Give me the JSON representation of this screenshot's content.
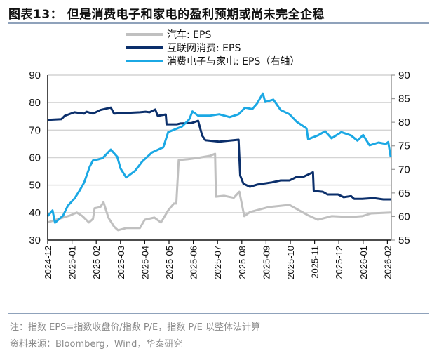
{
  "title": "图表13：  但是消费电子和家电的盈利预期或尚未完全企稳",
  "notes": {
    "note": "注：指数 EPS=指数收盘价/指数 P/E，指数 P/E 以整体法计算",
    "source": "资料来源：Bloomberg，Wind，华泰研究"
  },
  "chart_data": {
    "type": "line",
    "title": "",
    "xlabel": "",
    "ylabel": "",
    "legend_position": "top-center",
    "grid": true,
    "x_ticks": [
      "2024-12",
      "2025-01",
      "2025-02",
      "2025-03",
      "2025-04",
      "2025-05",
      "2025-06",
      "2025-07",
      "2025-08",
      "2025-09",
      "2025-10",
      "2025-11",
      "2025-12",
      "2026-01",
      "2026-02"
    ],
    "ylim_left": [
      30,
      90
    ],
    "yticks_left": [
      30,
      40,
      50,
      60,
      70,
      80,
      90
    ],
    "ylim_right": [
      55,
      90
    ],
    "yticks_right": [
      55,
      60,
      65,
      70,
      75,
      80,
      85,
      90
    ],
    "series": [
      {
        "name": "汽车: EPS",
        "axis": "left",
        "color": "#c0c0c0",
        "points": [
          [
            "2024-12-01",
            36.4
          ],
          [
            "2024-12-11",
            37.4
          ],
          [
            "2024-12-29",
            39
          ],
          [
            "2025-01-07",
            40
          ],
          [
            "2025-01-14",
            38.7
          ],
          [
            "2025-01-22",
            36.4
          ],
          [
            "2025-01-27",
            37.7
          ],
          [
            "2025-01-29",
            41.6
          ],
          [
            "2025-02-06",
            42
          ],
          [
            "2025-02-10",
            43.8
          ],
          [
            "2025-02-16",
            38.2
          ],
          [
            "2025-02-23",
            34.9
          ],
          [
            "2025-02-28",
            33.6
          ],
          [
            "2025-03-08",
            34.4
          ],
          [
            "2025-03-25",
            34.4
          ],
          [
            "2025-04-01",
            37.4
          ],
          [
            "2025-04-13",
            38.2
          ],
          [
            "2025-04-21",
            36.4
          ],
          [
            "2025-04-30",
            40.8
          ],
          [
            "2025-05-07",
            43.3
          ],
          [
            "2025-05-10",
            43.3
          ],
          [
            "2025-05-13",
            59.1
          ],
          [
            "2025-05-24",
            59.4
          ],
          [
            "2025-06-07",
            59.9
          ],
          [
            "2025-06-22",
            60.7
          ],
          [
            "2025-06-28",
            61.4
          ],
          [
            "2025-06-29",
            45.8
          ],
          [
            "2025-07-09",
            46.1
          ],
          [
            "2025-07-21",
            45.4
          ],
          [
            "2025-07-28",
            47.6
          ],
          [
            "2025-08-04",
            38.7
          ],
          [
            "2025-08-11",
            40.2
          ],
          [
            "2025-09-04",
            42
          ],
          [
            "2025-09-30",
            42.8
          ],
          [
            "2025-10-12",
            40.8
          ],
          [
            "2025-10-23",
            39
          ],
          [
            "2025-11-05",
            37.4
          ],
          [
            "2025-11-22",
            38.7
          ],
          [
            "2025-12-16",
            38.4
          ],
          [
            "2025-12-30",
            38.7
          ],
          [
            "2026-01-11",
            39.7
          ],
          [
            "2026-02-05",
            40
          ]
        ]
      },
      {
        "name": "互联网消费: EPS",
        "axis": "left",
        "color": "#0b2f6b",
        "points": [
          [
            "2024-12-01",
            73.7
          ],
          [
            "2024-12-18",
            74
          ],
          [
            "2024-12-22",
            75.2
          ],
          [
            "2025-01-04",
            76.5
          ],
          [
            "2025-01-16",
            76
          ],
          [
            "2025-01-19",
            76.7
          ],
          [
            "2025-01-27",
            76
          ],
          [
            "2025-02-06",
            77.3
          ],
          [
            "2025-02-19",
            78.2
          ],
          [
            "2025-02-23",
            76
          ],
          [
            "2025-03-05",
            76.2
          ],
          [
            "2025-03-25",
            76.5
          ],
          [
            "2025-04-02",
            76.7
          ],
          [
            "2025-04-07",
            76.5
          ],
          [
            "2025-04-14",
            77.5
          ],
          [
            "2025-04-17",
            75.2
          ],
          [
            "2025-04-27",
            75.7
          ],
          [
            "2025-04-28",
            72.1
          ],
          [
            "2025-05-11",
            72.1
          ],
          [
            "2025-05-15",
            72.4
          ],
          [
            "2025-05-29",
            72.6
          ],
          [
            "2025-06-07",
            73.4
          ],
          [
            "2025-06-12",
            68
          ],
          [
            "2025-06-16",
            66.3
          ],
          [
            "2025-07-03",
            65.8
          ],
          [
            "2025-07-27",
            66.5
          ],
          [
            "2025-07-29",
            53.5
          ],
          [
            "2025-08-03",
            50.5
          ],
          [
            "2025-08-11",
            49.4
          ],
          [
            "2025-08-20",
            50.2
          ],
          [
            "2025-09-08",
            51
          ],
          [
            "2025-09-19",
            51.7
          ],
          [
            "2025-09-30",
            51.7
          ],
          [
            "2025-10-09",
            53
          ],
          [
            "2025-10-17",
            53
          ],
          [
            "2025-10-29",
            54.7
          ],
          [
            "2025-10-30",
            47.9
          ],
          [
            "2025-11-11",
            47.6
          ],
          [
            "2025-11-17",
            46.6
          ],
          [
            "2025-11-30",
            46.6
          ],
          [
            "2025-12-07",
            45.6
          ],
          [
            "2025-12-16",
            46
          ],
          [
            "2025-12-20",
            45
          ],
          [
            "2025-12-30",
            45
          ],
          [
            "2026-01-14",
            45.3
          ],
          [
            "2026-01-26",
            44.8
          ],
          [
            "2026-02-05",
            44.8
          ]
        ]
      },
      {
        "name": "消费电子与家电: EPS（右轴）",
        "axis": "right",
        "color": "#1ba8e4",
        "points": [
          [
            "2024-12-01",
            60.1
          ],
          [
            "2024-12-07",
            61.3
          ],
          [
            "2024-12-10",
            58.7
          ],
          [
            "2024-12-20",
            60.2
          ],
          [
            "2024-12-26",
            62.3
          ],
          [
            "2025-01-04",
            63.8
          ],
          [
            "2025-01-10",
            65.4
          ],
          [
            "2025-01-16",
            67.2
          ],
          [
            "2025-01-23",
            70.6
          ],
          [
            "2025-01-27",
            71.9
          ],
          [
            "2025-02-03",
            72.1
          ],
          [
            "2025-02-09",
            72.4
          ],
          [
            "2025-02-19",
            74.2
          ],
          [
            "2025-02-27",
            72.7
          ],
          [
            "2025-03-01",
            70.2
          ],
          [
            "2025-03-08",
            68.3
          ],
          [
            "2025-03-19",
            69.7
          ],
          [
            "2025-03-28",
            71.7
          ],
          [
            "2025-04-10",
            73.6
          ],
          [
            "2025-04-24",
            74.7
          ],
          [
            "2025-04-30",
            77.9
          ],
          [
            "2025-05-17",
            79.1
          ],
          [
            "2025-05-26",
            80.6
          ],
          [
            "2025-05-30",
            82.3
          ],
          [
            "2025-06-07",
            81.4
          ],
          [
            "2025-06-22",
            81.4
          ],
          [
            "2025-07-03",
            81.7
          ],
          [
            "2025-07-16",
            81.1
          ],
          [
            "2025-07-27",
            81.7
          ],
          [
            "2025-08-05",
            83.1
          ],
          [
            "2025-08-14",
            82.8
          ],
          [
            "2025-08-20",
            84
          ],
          [
            "2025-08-27",
            86.1
          ],
          [
            "2025-08-30",
            84.3
          ],
          [
            "2025-09-10",
            84.8
          ],
          [
            "2025-09-19",
            82.6
          ],
          [
            "2025-09-30",
            81.7
          ],
          [
            "2025-10-09",
            80.1
          ],
          [
            "2025-10-21",
            78.7
          ],
          [
            "2025-10-23",
            76.4
          ],
          [
            "2025-11-05",
            77.2
          ],
          [
            "2025-11-14",
            78.1
          ],
          [
            "2025-11-22",
            76.6
          ],
          [
            "2025-12-04",
            77.9
          ],
          [
            "2025-12-16",
            77.2
          ],
          [
            "2025-12-24",
            76.1
          ],
          [
            "2026-01-01",
            77.3
          ],
          [
            "2026-01-09",
            75.1
          ],
          [
            "2026-01-20",
            75.7
          ],
          [
            "2026-01-29",
            75.4
          ],
          [
            "2026-02-02",
            75.8
          ],
          [
            "2026-02-05",
            72.7
          ]
        ]
      }
    ]
  }
}
